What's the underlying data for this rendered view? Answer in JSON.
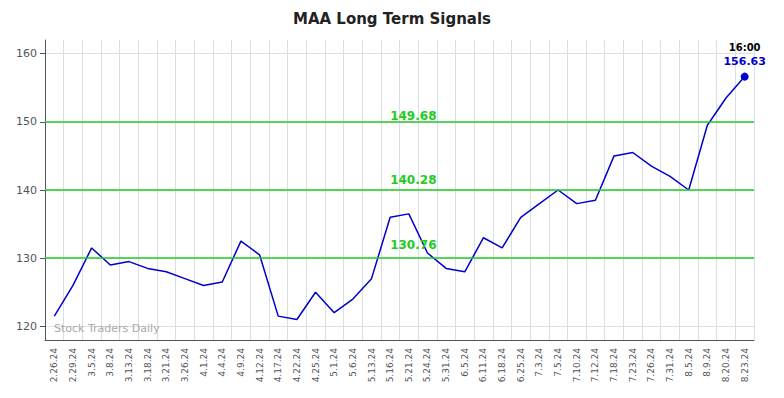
{
  "chart_data": {
    "type": "line",
    "title": "MAA Long Term Signals",
    "categories": [
      "2.26.24",
      "2.29.24",
      "3.5.24",
      "3.8.24",
      "3.13.24",
      "3.18.24",
      "3.21.24",
      "3.26.24",
      "4.1.24",
      "4.4.24",
      "4.9.24",
      "4.12.24",
      "4.17.24",
      "4.22.24",
      "4.25.24",
      "5.1.24",
      "5.6.24",
      "5.13.24",
      "5.16.24",
      "5.21.24",
      "5.24.24",
      "5.31.24",
      "6.5.24",
      "6.11.24",
      "6.18.24",
      "6.25.24",
      "7.3.24",
      "7.5.24",
      "7.10.24",
      "7.12.24",
      "7.18.24",
      "7.23.24",
      "7.26.24",
      "7.31.24",
      "8.5.24",
      "8.9.24",
      "8.20.24",
      "8.23.24"
    ],
    "values": [
      121.5,
      126.0,
      131.5,
      129.0,
      129.5,
      128.5,
      128.0,
      127.0,
      126.0,
      126.5,
      132.5,
      130.5,
      121.5,
      121.0,
      125.0,
      122.0,
      124.0,
      127.0,
      136.0,
      136.5,
      130.76,
      128.5,
      128.0,
      133.0,
      131.5,
      136.0,
      138.0,
      140.0,
      138.0,
      138.5,
      145.0,
      145.5,
      143.5,
      142.0,
      140.0,
      149.5,
      153.5,
      156.63
    ],
    "color": "#0000cc",
    "ylim": [
      118,
      162
    ],
    "yticks": [
      120,
      130,
      140,
      150,
      160
    ],
    "grid": true,
    "hlines": {
      "values": [
        130,
        140,
        150
      ],
      "color": "#22cc22"
    },
    "annotations": [
      {
        "text": "149.68",
        "y": 149.68,
        "color": "#22cc22"
      },
      {
        "text": "140.28",
        "y": 140.28,
        "color": "#22cc22"
      },
      {
        "text": "130.76",
        "y": 130.76,
        "color": "#22cc22"
      }
    ],
    "last_point": {
      "label": "16:00",
      "value_label": "156.63",
      "color": "#0000cc"
    },
    "watermark": "Stock Traders Daily"
  }
}
